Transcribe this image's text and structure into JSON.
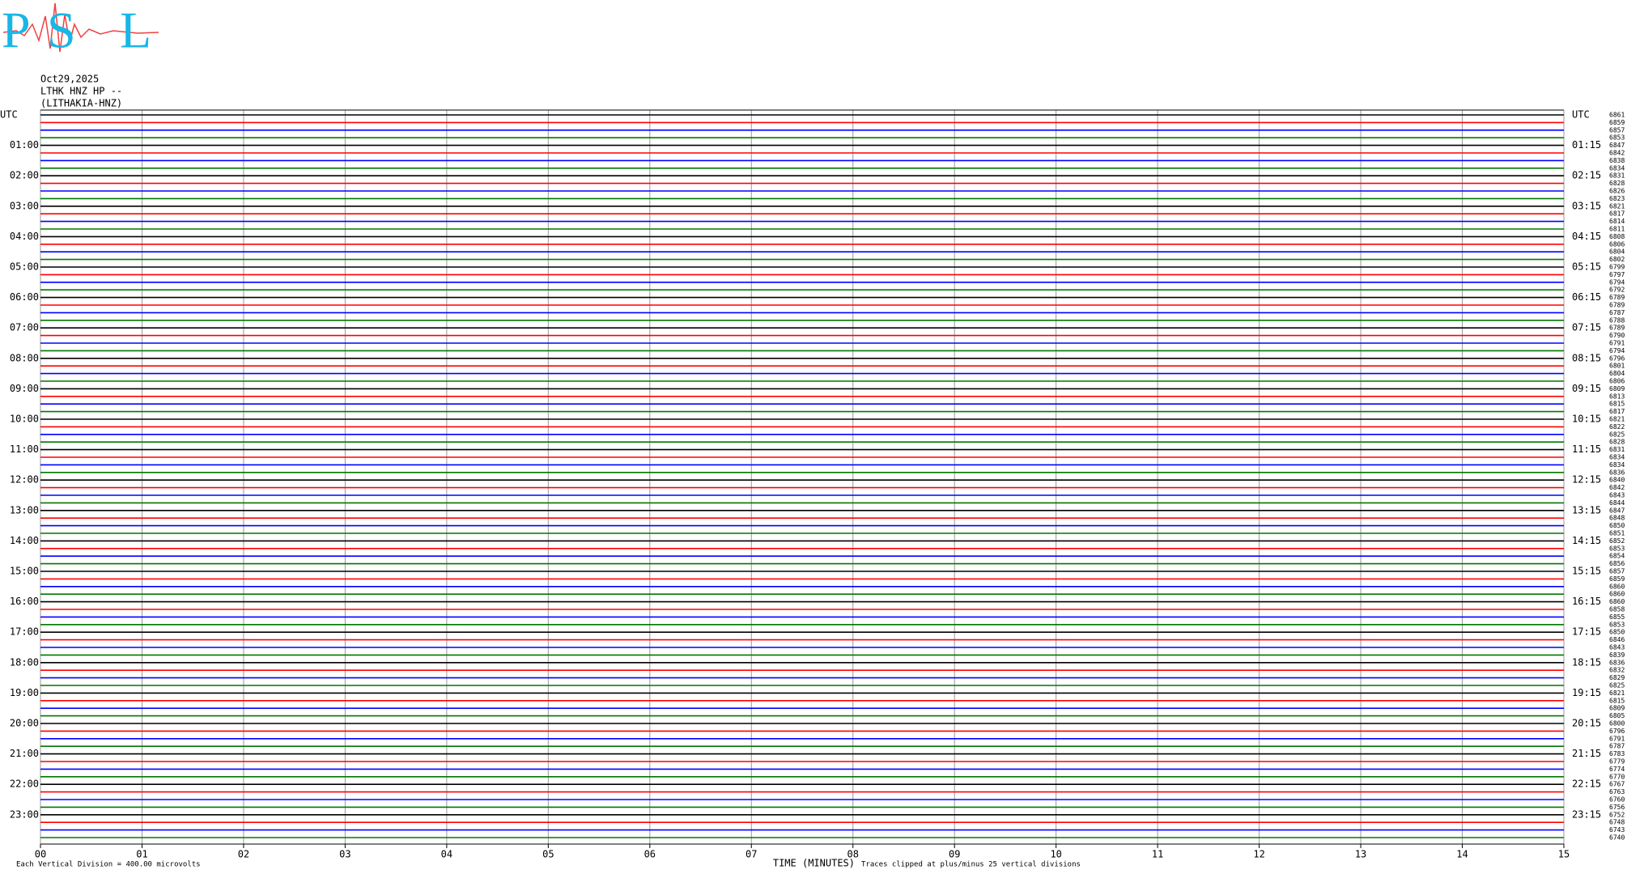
{
  "chart_data": {
    "type": "helicorder",
    "logo": [
      "P",
      "S",
      "L"
    ],
    "date": "Oct29,2025",
    "station": "LTHK HNZ HP --",
    "station_name": "(LITHAKIA-HNZ)",
    "left_labels": [
      "UTC",
      "01:00",
      "02:00",
      "03:00",
      "04:00",
      "05:00",
      "06:00",
      "07:00",
      "08:00",
      "09:00",
      "10:00",
      "11:00",
      "12:00",
      "13:00",
      "14:00",
      "15:00",
      "16:00",
      "17:00",
      "18:00",
      "19:00",
      "20:00",
      "21:00",
      "22:00",
      "23:00"
    ],
    "right_labels": [
      "UTC",
      "01:15",
      "02:15",
      "03:15",
      "04:15",
      "05:15",
      "06:15",
      "07:15",
      "08:15",
      "09:15",
      "10:15",
      "11:15",
      "12:15",
      "13:15",
      "14:15",
      "15:15",
      "16:15",
      "17:15",
      "18:15",
      "19:15",
      "20:15",
      "21:15",
      "22:15",
      "23:15"
    ],
    "trace_counts": [
      6861,
      6859,
      6857,
      6853,
      6847,
      6842,
      6838,
      6834,
      6831,
      6828,
      6826,
      6823,
      6821,
      6817,
      6814,
      6811,
      6808,
      6806,
      6804,
      6802,
      6799,
      6797,
      6794,
      6792,
      6789,
      6789,
      6787,
      6788,
      6789,
      6790,
      6791,
      6794,
      6796,
      6801,
      6804,
      6806,
      6809,
      6813,
      6815,
      6817,
      6821,
      6822,
      6825,
      6828,
      6831,
      6834,
      6834,
      6836,
      6840,
      6842,
      6843,
      6844,
      6847,
      6848,
      6850,
      6851,
      6852,
      6853,
      6854,
      6856,
      6857,
      6859,
      6860,
      6860,
      6860,
      6858,
      6855,
      6853,
      6850,
      6846,
      6843,
      6839,
      6836,
      6832,
      6829,
      6825,
      6821,
      6815,
      6809,
      6805,
      6800,
      6796,
      6791,
      6787,
      6783,
      6779,
      6774,
      6770,
      6767,
      6763,
      6760,
      6756,
      6752,
      6748,
      6743,
      6740
    ],
    "trace_colors": [
      "#000000",
      "#ff0000",
      "#0000ff",
      "#007700"
    ],
    "xlim": [
      0,
      15
    ],
    "xticks": [
      {
        "value": 0,
        "label": "00"
      },
      {
        "value": 1,
        "label": "01"
      },
      {
        "value": 2,
        "label": "02"
      },
      {
        "value": 3,
        "label": "03"
      },
      {
        "value": 4,
        "label": "04"
      },
      {
        "value": 5,
        "label": "05"
      },
      {
        "value": 6,
        "label": "06"
      },
      {
        "value": 7,
        "label": "07"
      },
      {
        "value": 8,
        "label": "08"
      },
      {
        "value": 9,
        "label": "09"
      },
      {
        "value": 10,
        "label": "10"
      },
      {
        "value": 11,
        "label": "11"
      },
      {
        "value": 12,
        "label": "12"
      },
      {
        "value": 13,
        "label": "13"
      },
      {
        "value": 14,
        "label": "14"
      },
      {
        "value": 15,
        "label": "15"
      }
    ],
    "grid": true,
    "scale_note": "Each Vertical Division =  400.00 microvolts",
    "x_label": "TIME (MINUTES)",
    "clip_note": "Traces clipped at plus/minus 25 vertical divisions"
  }
}
